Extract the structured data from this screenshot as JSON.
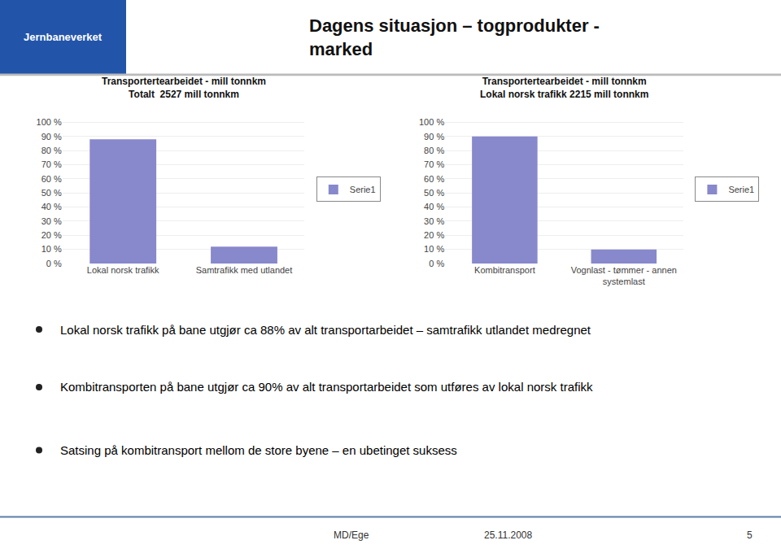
{
  "title": "Dagens situasjon – togprodukter -\nmarked",
  "annotations": [
    "Jernbaneverket",
    "Lokal norsk trafikk på bane utgjør ca 88% av alt transportarbeidet – samtrafikk utlandet medregnet",
    "Kombitransporten på bane utgjør ca 90% av alt transportarbeidet som utføres av lokal norsk trafikk",
    "Satsing på kombitransport mellom de store byene – en ubetinget suksess",
    "MD/Ege",
    "25.11.2008",
    "5"
  ],
  "chart_data": [
    {
      "type": "bar",
      "title": "Transportertearbeidet - mill tonnkm\nTotalt  2527 mill tonnkm",
      "categories": [
        "Lokal norsk trafikk",
        "Samtrafikk med utlandet"
      ],
      "series": [
        {
          "name": "Serie1",
          "color": "#8888CC",
          "values": [
            88,
            12
          ]
        }
      ],
      "ylim": [
        0,
        105
      ],
      "yticks": [
        {
          "value": 0,
          "label": "0 %"
        },
        {
          "value": 10,
          "label": "10 %"
        },
        {
          "value": 20,
          "label": "20 %"
        },
        {
          "value": 30,
          "label": "30 %"
        },
        {
          "value": 40,
          "label": "40 %"
        },
        {
          "value": 50,
          "label": "50 %"
        },
        {
          "value": 60,
          "label": "60 %"
        },
        {
          "value": 70,
          "label": "70 %"
        },
        {
          "value": 80,
          "label": "80 %"
        },
        {
          "value": 90,
          "label": "90 %"
        },
        {
          "value": 100,
          "label": "100 %"
        }
      ],
      "grid": true,
      "legend": "right"
    },
    {
      "type": "bar",
      "title": "Transportertearbeidet - mill tonnkm\nLokal norsk trafikk 2215 mill tonnkm",
      "categories": [
        "Kombitransport",
        "Vognlast - tømmer - annen\nsystemlast"
      ],
      "series": [
        {
          "name": "Serie1",
          "color": "#8888CC",
          "values": [
            90,
            10
          ]
        }
      ],
      "ylim": [
        0,
        105
      ],
      "yticks": [
        {
          "value": 0,
          "label": "0 %"
        },
        {
          "value": 10,
          "label": "10 %"
        },
        {
          "value": 20,
          "label": "20 %"
        },
        {
          "value": 30,
          "label": "30 %"
        },
        {
          "value": 40,
          "label": "40 %"
        },
        {
          "value": 50,
          "label": "50 %"
        },
        {
          "value": 60,
          "label": "60 %"
        },
        {
          "value": 70,
          "label": "70 %"
        },
        {
          "value": 80,
          "label": "80 %"
        },
        {
          "value": 90,
          "label": "90 %"
        },
        {
          "value": 100,
          "label": "100 %"
        }
      ],
      "grid": true,
      "legend": "right"
    }
  ]
}
